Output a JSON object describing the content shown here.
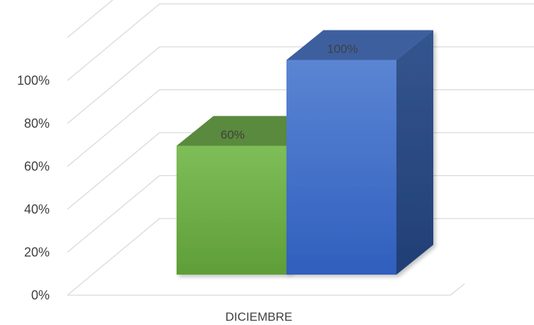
{
  "chart_data": {
    "type": "bar",
    "categories": [
      "DICIEMBRE"
    ],
    "series": [
      {
        "values": [
          60
        ],
        "data_label": "60%",
        "color": "#70ad47"
      },
      {
        "values": [
          100
        ],
        "data_label": "100%",
        "color": "#4472c4"
      }
    ],
    "yticks": [
      "0%",
      "20%",
      "40%",
      "60%",
      "80%",
      "100%"
    ],
    "ylim": [
      0,
      120
    ],
    "ytick_step": 20,
    "grid": true,
    "style": "3d-clustered-column",
    "title": "",
    "xlabel": "",
    "ylabel": ""
  }
}
